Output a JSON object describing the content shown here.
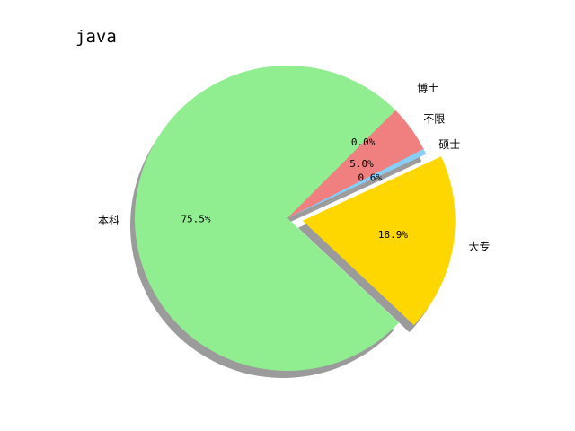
{
  "chart_data": {
    "type": "pie",
    "title": "java",
    "categories": [
      "本科",
      "大专",
      "硕士",
      "不限",
      "博士"
    ],
    "values": [
      75.5,
      18.9,
      0.6,
      5.0,
      0.0
    ],
    "labels_pct": [
      "75.5%",
      "18.9%",
      "0.6%",
      "5.0%",
      "0.0%"
    ],
    "colors": [
      "#90ee90",
      "#ffd700",
      "#87cefa",
      "#f08080",
      "#ff4500"
    ],
    "exploded": [
      false,
      true,
      false,
      false,
      true
    ],
    "shadow": true,
    "legend": false
  }
}
